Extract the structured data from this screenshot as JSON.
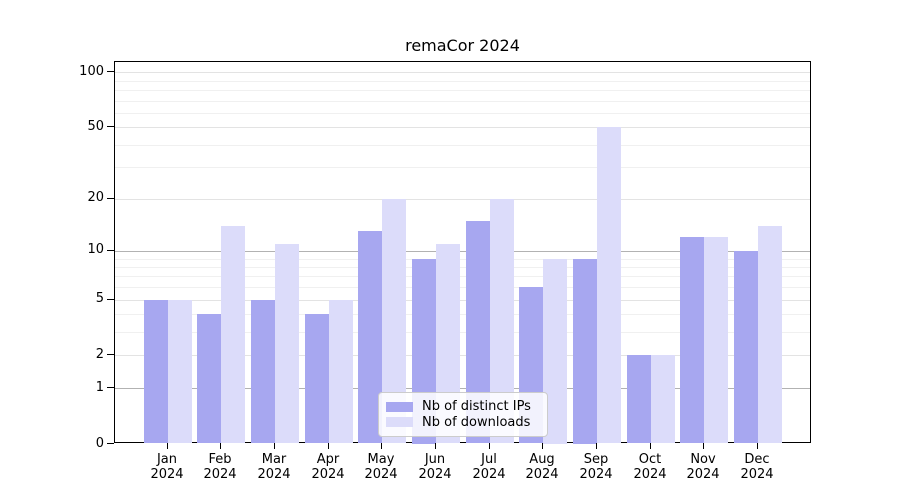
{
  "chart_data": {
    "type": "bar",
    "title": "remaCor 2024",
    "categories": [
      "Jan",
      "Feb",
      "Mar",
      "Apr",
      "May",
      "Jun",
      "Jul",
      "Aug",
      "Sep",
      "Oct",
      "Nov",
      "Dec"
    ],
    "x_tick_year": "2024",
    "series": [
      {
        "name": "Nb of distinct IPs",
        "color": "#a7a7f0",
        "values": [
          5,
          4,
          5,
          4,
          13,
          9,
          15,
          6,
          9,
          2,
          12,
          10
        ]
      },
      {
        "name": "Nb of downloads",
        "color": "#dcdcfa",
        "values": [
          5,
          14,
          11,
          5,
          20,
          11,
          20,
          9,
          50,
          2,
          12,
          14
        ]
      }
    ],
    "y_scale": "log10(1+x)",
    "y_ticks": [
      0,
      1,
      2,
      5,
      10,
      20,
      50,
      100
    ],
    "y_minor_gridlines": [
      3,
      4,
      6,
      7,
      8,
      9,
      30,
      40,
      60,
      70,
      80,
      90
    ],
    "y_major_gridlines": [
      1,
      10
    ],
    "ylim": [
      0,
      117
    ],
    "grid": "on",
    "legend_position": "bottom-center",
    "colors": {
      "grid_major": "#b2b2b2",
      "grid_labeled": "#e3e3e3",
      "grid_minor": "#f0f0f0",
      "axis": "#000000",
      "legend_border": "#cccccc"
    }
  }
}
